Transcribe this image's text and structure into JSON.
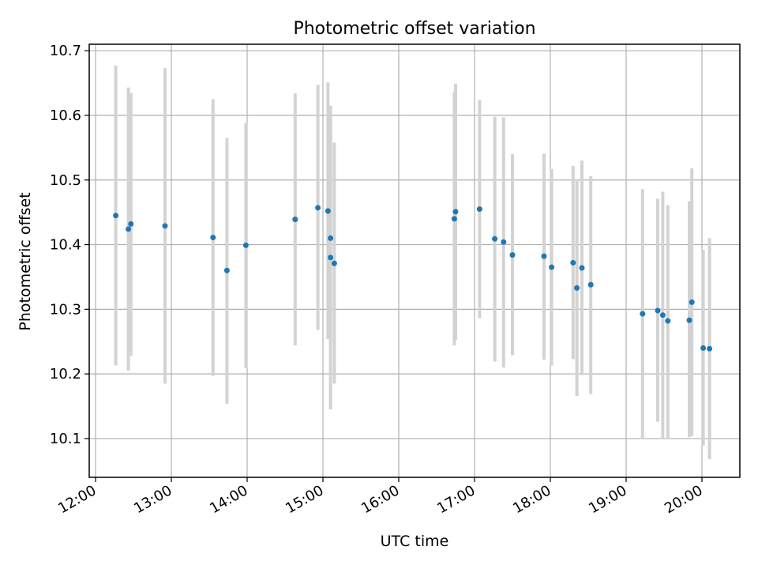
{
  "chart_data": {
    "type": "scatter",
    "title": "Photometric offset variation",
    "xlabel": "UTC time",
    "ylabel": "Photometric offset",
    "x_ticks": [
      "12:00",
      "13:00",
      "14:00",
      "15:00",
      "16:00",
      "17:00",
      "18:00",
      "19:00",
      "20:00"
    ],
    "y_ticks": [
      "10.1",
      "10.2",
      "10.3",
      "10.4",
      "10.5",
      "10.6",
      "10.7"
    ],
    "xlim": [
      "11:55",
      "20:30"
    ],
    "ylim": [
      10.04,
      10.71
    ],
    "grid": true,
    "point_color": "#1f77b4",
    "errorbar_color": "#d3d3d3",
    "points": [
      {
        "x": "12:16",
        "y": 10.445,
        "low": 10.213,
        "high": 10.677
      },
      {
        "x": "12:26",
        "y": 10.424,
        "low": 10.205,
        "high": 10.643
      },
      {
        "x": "12:28",
        "y": 10.432,
        "low": 10.228,
        "high": 10.635
      },
      {
        "x": "12:55",
        "y": 10.429,
        "low": 10.185,
        "high": 10.673
      },
      {
        "x": "13:33",
        "y": 10.411,
        "low": 10.197,
        "high": 10.625
      },
      {
        "x": "13:44",
        "y": 10.36,
        "low": 10.154,
        "high": 10.565
      },
      {
        "x": "13:59",
        "y": 10.399,
        "low": 10.209,
        "high": 10.588
      },
      {
        "x": "14:38",
        "y": 10.439,
        "low": 10.244,
        "high": 10.634
      },
      {
        "x": "14:56",
        "y": 10.457,
        "low": 10.268,
        "high": 10.647
      },
      {
        "x": "15:04",
        "y": 10.452,
        "low": 10.254,
        "high": 10.651
      },
      {
        "x": "15:06",
        "y": 10.41,
        "low": 10.222,
        "high": 10.597
      },
      {
        "x": "15:06",
        "y": 10.38,
        "low": 10.145,
        "high": 10.615
      },
      {
        "x": "15:09",
        "y": 10.371,
        "low": 10.185,
        "high": 10.558
      },
      {
        "x": "16:44",
        "y": 10.44,
        "low": 10.244,
        "high": 10.637
      },
      {
        "x": "16:45",
        "y": 10.451,
        "low": 10.253,
        "high": 10.649
      },
      {
        "x": "17:04",
        "y": 10.455,
        "low": 10.286,
        "high": 10.624
      },
      {
        "x": "17:16",
        "y": 10.409,
        "low": 10.219,
        "high": 10.598
      },
      {
        "x": "17:23",
        "y": 10.404,
        "low": 10.21,
        "high": 10.597
      },
      {
        "x": "17:30",
        "y": 10.384,
        "low": 10.229,
        "high": 10.54
      },
      {
        "x": "17:55",
        "y": 10.382,
        "low": 10.222,
        "high": 10.541
      },
      {
        "x": "18:01",
        "y": 10.365,
        "low": 10.213,
        "high": 10.517
      },
      {
        "x": "18:18",
        "y": 10.372,
        "low": 10.223,
        "high": 10.522
      },
      {
        "x": "18:21",
        "y": 10.333,
        "low": 10.166,
        "high": 10.5
      },
      {
        "x": "18:25",
        "y": 10.364,
        "low": 10.198,
        "high": 10.53
      },
      {
        "x": "18:32",
        "y": 10.338,
        "low": 10.169,
        "high": 10.506
      },
      {
        "x": "19:13",
        "y": 10.293,
        "low": 10.1,
        "high": 10.486
      },
      {
        "x": "19:25",
        "y": 10.298,
        "low": 10.126,
        "high": 10.471
      },
      {
        "x": "19:29",
        "y": 10.291,
        "low": 10.1,
        "high": 10.482
      },
      {
        "x": "19:33",
        "y": 10.282,
        "low": 10.1,
        "high": 10.461
      },
      {
        "x": "19:50",
        "y": 10.283,
        "low": 10.102,
        "high": 10.467
      },
      {
        "x": "19:52",
        "y": 10.311,
        "low": 10.104,
        "high": 10.518
      },
      {
        "x": "20:01",
        "y": 10.24,
        "low": 10.089,
        "high": 10.392
      },
      {
        "x": "20:06",
        "y": 10.239,
        "low": 10.068,
        "high": 10.41
      }
    ]
  }
}
